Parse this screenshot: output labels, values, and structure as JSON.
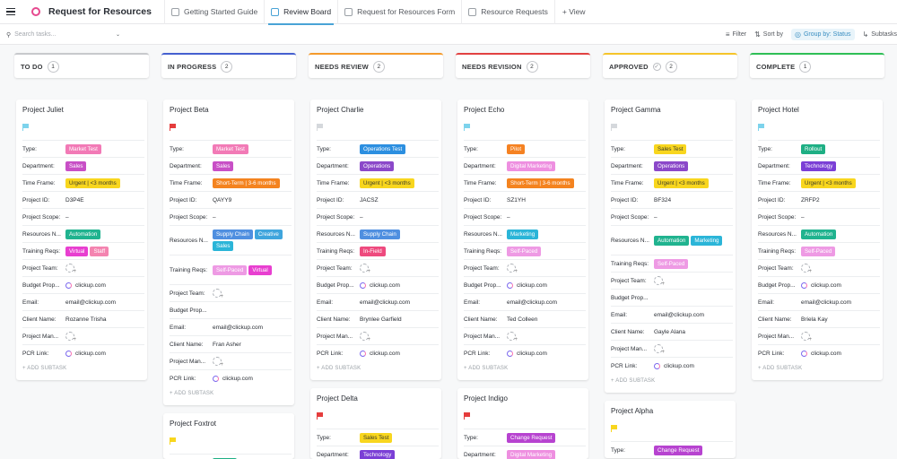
{
  "app": {
    "title": "Request for Resources"
  },
  "tabs": [
    {
      "label": "Getting Started Guide",
      "active": false
    },
    {
      "label": "Review Board",
      "active": true
    },
    {
      "label": "Request for Resources Form",
      "active": false
    },
    {
      "label": "Resource Requests",
      "active": false
    }
  ],
  "add_view": "+ View",
  "search": {
    "placeholder": "Search tasks..."
  },
  "tools": {
    "filter": "Filter",
    "sort": "Sort by",
    "group": "Group by: Status",
    "subtasks": "Subtasks"
  },
  "field_labels": {
    "type": "Type:",
    "department": "Department:",
    "timeframe": "Time Frame:",
    "project_id": "Project ID:",
    "scope": "Project Scope:",
    "resources": "Resources N...",
    "training": "Training Reqs:",
    "team": "Project Team:",
    "budget": "Budget Prop...",
    "email": "Email:",
    "client": "Client Name:",
    "manager": "Project Man...",
    "pcr": "PCR Link:"
  },
  "add_subtask": "+ ADD SUBTASK",
  "colors": {
    "market_test": "#f27ab6",
    "sales": "#c84fc6",
    "urgent": "#f8d61e",
    "short_term": "#f4831f",
    "automation": "#20b38f",
    "virtual": "#e83fd0",
    "staff": "#f484b0",
    "supply_chain": "#4f8fe0",
    "creative": "#3fa5dd",
    "self_paced": "#ee9ae4",
    "operations_test": "#2c8fe0",
    "operations": "#8b48c9",
    "in_field": "#ee4a7e",
    "marketing": "#2bb5d8",
    "pilot": "#f58222",
    "digital_marketing": "#ee8fe0",
    "sales_test": "#f8d61e",
    "rollout": "#1eaf84",
    "technology": "#7b3fd6",
    "change_request": "#b743d0"
  },
  "columns": [
    {
      "title": "TO DO",
      "count": "1",
      "color": "#c7c9cc",
      "cards": [
        {
          "title": "Project Juliet",
          "flag": "#7dd3ec",
          "type": {
            "t": "Market Test",
            "c": "#f27ab6"
          },
          "dept": {
            "t": "Sales",
            "c": "#c84fc6"
          },
          "tf": {
            "t": "Urgent | <3 months",
            "c": "#f8d61e"
          },
          "pid": "D3P4E",
          "scope": "–",
          "res": [
            {
              "t": "Automation",
              "c": "#20b38f"
            }
          ],
          "train": [
            {
              "t": "Virtual",
              "c": "#e83fd0"
            },
            {
              "t": "Staff",
              "c": "#f484b0"
            }
          ],
          "budget": "clickup.com",
          "email": "email@clickup.com",
          "client": "Rozanne Trisha",
          "pcr": "clickup.com"
        }
      ]
    },
    {
      "title": "IN PROGRESS",
      "count": "2",
      "color": "#4560d0",
      "cards": [
        {
          "title": "Project Beta",
          "flag": "#e53c3c",
          "type": {
            "t": "Market Test",
            "c": "#f27ab6"
          },
          "dept": {
            "t": "Sales",
            "c": "#c84fc6"
          },
          "tf": {
            "t": "Short-Term | 3-6 months",
            "c": "#f4831f"
          },
          "pid": "QAYY9",
          "scope": "–",
          "res": [
            {
              "t": "Supply Chain",
              "c": "#4f8fe0"
            },
            {
              "t": "Creative",
              "c": "#3fa5dd"
            },
            {
              "t": "Sales",
              "c": "#2bb5d8"
            }
          ],
          "train": [
            {
              "t": "Self-Paced",
              "c": "#ee9ae4"
            },
            {
              "t": "Virtual",
              "c": "#e83fd0"
            }
          ],
          "budget": "",
          "email": "email@clickup.com",
          "client": "Fran Asher",
          "pcr": "clickup.com"
        },
        {
          "title": "Project Foxtrot",
          "flag": "#f8d61e",
          "type": {
            "t": "Rollout",
            "c": "#1eaf84"
          }
        }
      ]
    },
    {
      "title": "NEEDS REVIEW",
      "count": "2",
      "color": "#f49a2c",
      "cards": [
        {
          "title": "Project Charlie",
          "flag": "#d5d8dc",
          "type": {
            "t": "Operations Test",
            "c": "#2c8fe0"
          },
          "dept": {
            "t": "Operations",
            "c": "#8b48c9"
          },
          "tf": {
            "t": "Urgent | <3 months",
            "c": "#f8d61e"
          },
          "pid": "JACSZ",
          "scope": "–",
          "res": [
            {
              "t": "Supply Chain",
              "c": "#4f8fe0"
            }
          ],
          "train": [
            {
              "t": "In-Field",
              "c": "#ee4a7e"
            }
          ],
          "budget": "clickup.com",
          "email": "email@clickup.com",
          "client": "Brynlee Garfield",
          "pcr": "clickup.com"
        },
        {
          "title": "Project Delta",
          "flag": "#e53c3c",
          "type": {
            "t": "Sales Test",
            "c": "#f8d61e"
          },
          "dept": {
            "t": "Technology",
            "c": "#7b3fd6"
          }
        }
      ]
    },
    {
      "title": "NEEDS REVISION",
      "count": "2",
      "color": "#e24141",
      "cards": [
        {
          "title": "Project Echo",
          "flag": "#7dd3ec",
          "type": {
            "t": "Pilot",
            "c": "#f58222"
          },
          "dept": {
            "t": "Digital Marketing",
            "c": "#ee8fe0"
          },
          "tf": {
            "t": "Short-Term | 3-6 months",
            "c": "#f4831f"
          },
          "pid": "SZ1YH",
          "scope": "–",
          "res": [
            {
              "t": "Marketing",
              "c": "#2bb5d8"
            }
          ],
          "train": [
            {
              "t": "Self-Paced",
              "c": "#ee9ae4"
            }
          ],
          "budget": "clickup.com",
          "email": "email@clickup.com",
          "client": "Ted Colleen",
          "pcr": "clickup.com"
        },
        {
          "title": "Project Indigo",
          "flag": "#e53c3c",
          "type": {
            "t": "Change Request",
            "c": "#b743d0"
          },
          "dept": {
            "t": "Digital Marketing",
            "c": "#ee8fe0"
          }
        }
      ]
    },
    {
      "title": "APPROVED",
      "count": "2",
      "color": "#f5c42a",
      "cards": [
        {
          "title": "Project Gamma",
          "flag": "#d5d8dc",
          "type": {
            "t": "Sales Test",
            "c": "#f8d61e"
          },
          "dept": {
            "t": "Operations",
            "c": "#8b48c9"
          },
          "tf": {
            "t": "Urgent | <3 months",
            "c": "#f8d61e"
          },
          "pid": "BF324",
          "scope": "–",
          "res": [
            {
              "t": "Automation",
              "c": "#20b38f"
            },
            {
              "t": "Marketing",
              "c": "#2bb5d8"
            }
          ],
          "train": [
            {
              "t": "Self-Paced",
              "c": "#ee9ae4"
            }
          ],
          "budget": "",
          "email": "email@clickup.com",
          "client": "Gayle Alana",
          "pcr": "clickup.com"
        },
        {
          "title": "Project Alpha",
          "flag": "#f8d61e",
          "type": {
            "t": "Change Request",
            "c": "#b743d0"
          }
        }
      ]
    },
    {
      "title": "COMPLETE",
      "count": "1",
      "color": "#2fbf56",
      "cards": [
        {
          "title": "Project Hotel",
          "flag": "#7dd3ec",
          "type": {
            "t": "Rollout",
            "c": "#1eaf84"
          },
          "dept": {
            "t": "Technology",
            "c": "#7b3fd6"
          },
          "tf": {
            "t": "Urgent | <3 months",
            "c": "#f8d61e"
          },
          "pid": "ZRFP2",
          "scope": "–",
          "res": [
            {
              "t": "Automation",
              "c": "#20b38f"
            }
          ],
          "train": [
            {
              "t": "Self-Paced",
              "c": "#ee9ae4"
            }
          ],
          "budget": "clickup.com",
          "email": "email@clickup.com",
          "client": "Briela Kay",
          "pcr": "clickup.com"
        }
      ]
    }
  ]
}
